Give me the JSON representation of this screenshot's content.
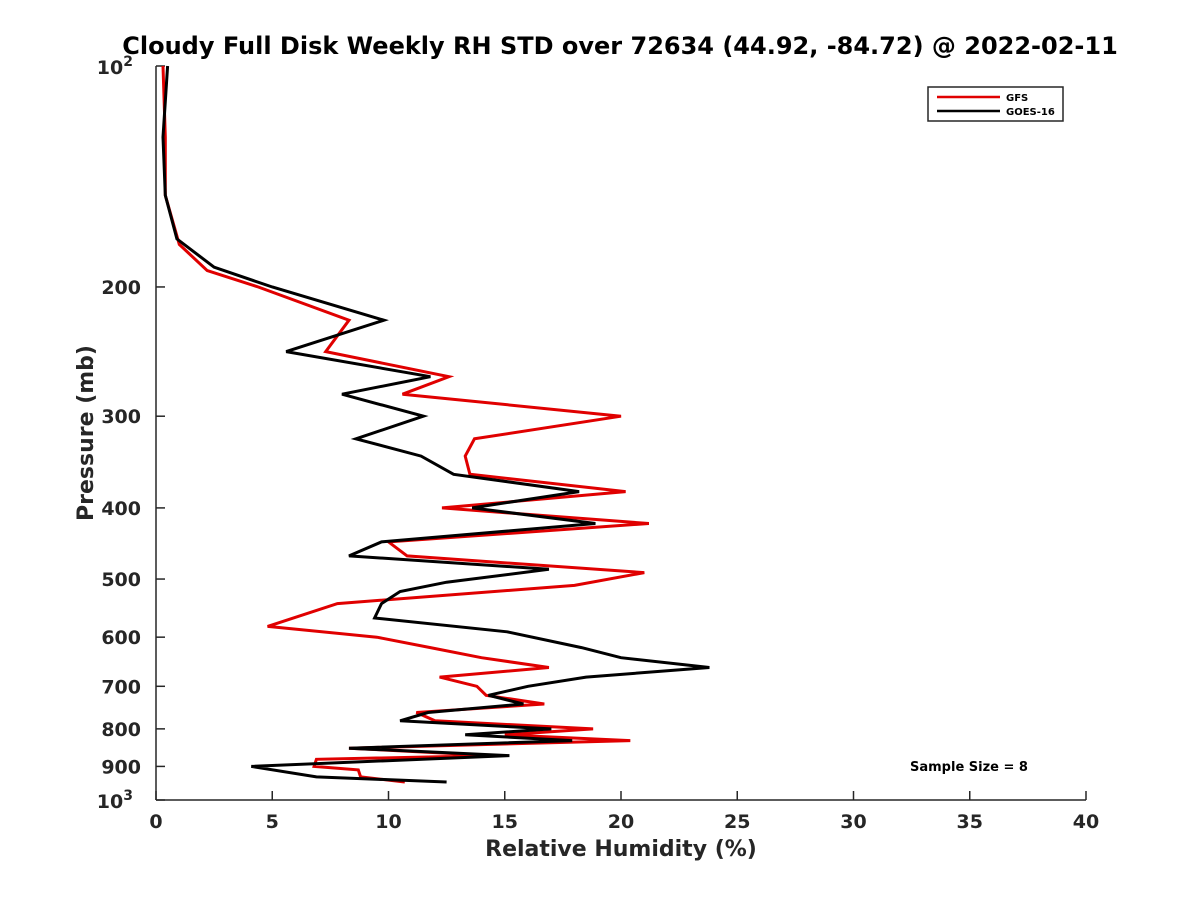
{
  "chart_data": {
    "type": "line",
    "title": "Cloudy Full Disk Weekly RH STD over 72634 (44.92, -84.72) @ 2022-02-11",
    "xlabel": "Relative Humidity (%)",
    "ylabel": "Pressure (mb)",
    "xlim": [
      0,
      40
    ],
    "ylim": [
      100,
      1000
    ],
    "y_scale": "log",
    "y_reversed": true,
    "x_ticks": [
      "0",
      "5",
      "10",
      "15",
      "20",
      "25",
      "30",
      "35",
      "40"
    ],
    "y_ticks": [
      {
        "value": 100,
        "base": "10",
        "exp": "2"
      },
      {
        "value": 200,
        "label": "200"
      },
      {
        "value": 300,
        "label": "300"
      },
      {
        "value": 400,
        "label": "400"
      },
      {
        "value": 500,
        "label": "500"
      },
      {
        "value": 600,
        "label": "600"
      },
      {
        "value": 700,
        "label": "700"
      },
      {
        "value": 800,
        "label": "800"
      },
      {
        "value": 900,
        "label": "900"
      },
      {
        "value": 1000,
        "base": "10",
        "exp": "3"
      }
    ],
    "grid": false,
    "legend_position": "top-right",
    "annotation": "Sample Size = 8",
    "series": [
      {
        "name": "GFS",
        "color": "#e00000",
        "points": [
          [
            0.3,
            100
          ],
          [
            0.4,
            125
          ],
          [
            0.4,
            150
          ],
          [
            1.0,
            175
          ],
          [
            2.2,
            190
          ],
          [
            4.4,
            200
          ],
          [
            8.3,
            222
          ],
          [
            7.3,
            245
          ],
          [
            12.6,
            265
          ],
          [
            10.6,
            280
          ],
          [
            20.0,
            300
          ],
          [
            13.7,
            322
          ],
          [
            13.3,
            340
          ],
          [
            13.5,
            360
          ],
          [
            20.2,
            380
          ],
          [
            12.3,
            400
          ],
          [
            21.2,
            420
          ],
          [
            10.0,
            445
          ],
          [
            10.8,
            465
          ],
          [
            21.0,
            490
          ],
          [
            18.0,
            510
          ],
          [
            7.8,
            540
          ],
          [
            4.8,
            580
          ],
          [
            9.5,
            600
          ],
          [
            11.8,
            620
          ],
          [
            14.0,
            640
          ],
          [
            16.9,
            660
          ],
          [
            12.2,
            680
          ],
          [
            13.8,
            700
          ],
          [
            14.2,
            720
          ],
          [
            16.7,
            740
          ],
          [
            11.2,
            760
          ],
          [
            12.0,
            780
          ],
          [
            18.8,
            800
          ],
          [
            15.0,
            815
          ],
          [
            20.4,
            830
          ],
          [
            8.3,
            850
          ],
          [
            14.5,
            870
          ],
          [
            6.9,
            880
          ],
          [
            6.8,
            900
          ],
          [
            8.7,
            910
          ],
          [
            8.8,
            930
          ],
          [
            10.7,
            945
          ]
        ]
      },
      {
        "name": "GOES-16",
        "color": "#000000",
        "points": [
          [
            0.5,
            100
          ],
          [
            0.3,
            125
          ],
          [
            0.4,
            150
          ],
          [
            0.9,
            172
          ],
          [
            2.5,
            188
          ],
          [
            5.0,
            200
          ],
          [
            9.8,
            222
          ],
          [
            5.6,
            245
          ],
          [
            11.8,
            265
          ],
          [
            8.0,
            280
          ],
          [
            11.5,
            300
          ],
          [
            8.6,
            322
          ],
          [
            11.4,
            340
          ],
          [
            12.8,
            360
          ],
          [
            18.2,
            380
          ],
          [
            13.6,
            400
          ],
          [
            18.9,
            420
          ],
          [
            9.7,
            445
          ],
          [
            8.3,
            465
          ],
          [
            16.9,
            485
          ],
          [
            12.5,
            505
          ],
          [
            10.5,
            520
          ],
          [
            9.7,
            540
          ],
          [
            9.4,
            565
          ],
          [
            15.1,
            590
          ],
          [
            18.3,
            620
          ],
          [
            20.0,
            640
          ],
          [
            23.8,
            660
          ],
          [
            18.5,
            680
          ],
          [
            16.0,
            700
          ],
          [
            14.3,
            720
          ],
          [
            15.8,
            740
          ],
          [
            11.7,
            760
          ],
          [
            10.5,
            780
          ],
          [
            17.0,
            800
          ],
          [
            13.3,
            815
          ],
          [
            17.9,
            830
          ],
          [
            8.3,
            850
          ],
          [
            15.2,
            870
          ],
          [
            4.1,
            900
          ],
          [
            6.9,
            930
          ],
          [
            12.5,
            945
          ]
        ]
      }
    ]
  }
}
